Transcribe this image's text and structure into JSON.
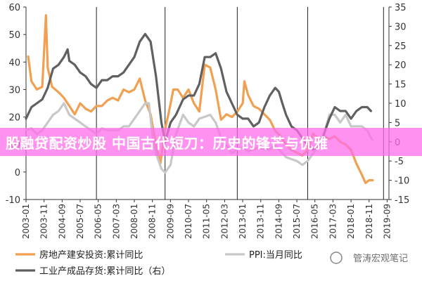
{
  "banner": {
    "text": "股融贷配资炒股 中国古代短刀：历史的锋芒与优雅"
  },
  "watermark": {
    "text": "管涛宏观笔记"
  },
  "colors": {
    "orange": "#F0A050",
    "gray": "#C8C8C8",
    "dark": "#606060",
    "banner": "#FF6EEB"
  },
  "chart_data": {
    "type": "line",
    "title": "",
    "y_left": {
      "min": -10,
      "max": 60,
      "ticks": [
        "-10",
        "0",
        "10",
        "20",
        "30",
        "40",
        "50",
        "60"
      ]
    },
    "y_right": {
      "min": -15,
      "max": 35,
      "ticks": [
        "-15",
        "-10",
        "-5",
        "0",
        "5",
        "10",
        "15",
        "20",
        "25",
        "30",
        "35"
      ]
    },
    "x_min": 2003.0,
    "x_max": 2019.75,
    "x_ticks": [
      {
        "x": 2003.0,
        "label": "2003-01"
      },
      {
        "x": 2003.833,
        "label": "2003-11"
      },
      {
        "x": 2004.667,
        "label": "2004-09"
      },
      {
        "x": 2005.5,
        "label": "2005-07"
      },
      {
        "x": 2006.333,
        "label": "2006-05"
      },
      {
        "x": 2007.167,
        "label": "2007-03"
      },
      {
        "x": 2008.0,
        "label": "2008-01"
      },
      {
        "x": 2008.833,
        "label": "2008-11"
      },
      {
        "x": 2009.667,
        "label": "2009-09"
      },
      {
        "x": 2010.5,
        "label": "2010-07"
      },
      {
        "x": 2011.333,
        "label": "2011-05"
      },
      {
        "x": 2012.167,
        "label": "2012-03"
      },
      {
        "x": 2013.0,
        "label": "2013-01"
      },
      {
        "x": 2013.833,
        "label": "2013-11"
      },
      {
        "x": 2014.667,
        "label": "2014-09"
      },
      {
        "x": 2015.5,
        "label": "2015-07"
      },
      {
        "x": 2016.333,
        "label": "2016-05"
      },
      {
        "x": 2017.167,
        "label": "2017-03"
      },
      {
        "x": 2018.0,
        "label": "2018-01"
      },
      {
        "x": 2018.833,
        "label": "2018-11"
      },
      {
        "x": 2019.667,
        "label": "2019-09"
      }
    ],
    "vlines": [
      2006.25,
      2009.417,
      2012.75,
      2016.0,
      2019.5
    ],
    "series": [
      {
        "name": "房地产建安投资:累计同比",
        "axis": "left",
        "color": "#F0A050",
        "points": [
          [
            2003.1,
            42
          ],
          [
            2003.25,
            33
          ],
          [
            2003.5,
            30
          ],
          [
            2003.75,
            31
          ],
          [
            2003.92,
            57
          ],
          [
            2004.0,
            38
          ],
          [
            2004.2,
            31
          ],
          [
            2004.5,
            29
          ],
          [
            2004.75,
            27
          ],
          [
            2005.0,
            24
          ],
          [
            2005.25,
            21
          ],
          [
            2005.5,
            25
          ],
          [
            2005.75,
            23
          ],
          [
            2006.0,
            22
          ],
          [
            2006.25,
            24
          ],
          [
            2006.5,
            24
          ],
          [
            2006.75,
            26
          ],
          [
            2007.0,
            27
          ],
          [
            2007.25,
            26
          ],
          [
            2007.5,
            30
          ],
          [
            2007.75,
            29
          ],
          [
            2008.0,
            30
          ],
          [
            2008.25,
            34
          ],
          [
            2008.5,
            26
          ],
          [
            2008.75,
            21
          ],
          [
            2009.0,
            10
          ],
          [
            2009.2,
            3
          ],
          [
            2009.4,
            15
          ],
          [
            2009.6,
            22
          ],
          [
            2009.8,
            30
          ],
          [
            2010.0,
            30
          ],
          [
            2010.25,
            27
          ],
          [
            2010.5,
            30
          ],
          [
            2010.75,
            25
          ],
          [
            2011.0,
            22
          ],
          [
            2011.25,
            39
          ],
          [
            2011.5,
            38
          ],
          [
            2011.75,
            30
          ],
          [
            2012.0,
            19
          ],
          [
            2012.25,
            21
          ],
          [
            2012.5,
            20
          ],
          [
            2012.75,
            22
          ],
          [
            2013.0,
            25
          ],
          [
            2013.08,
            33
          ],
          [
            2013.25,
            28
          ],
          [
            2013.5,
            24
          ],
          [
            2013.75,
            23
          ],
          [
            2014.0,
            21
          ],
          [
            2014.25,
            19
          ],
          [
            2014.5,
            15
          ],
          [
            2014.75,
            13
          ],
          [
            2015.0,
            10
          ],
          [
            2015.25,
            8
          ],
          [
            2015.5,
            7
          ],
          [
            2015.75,
            6
          ],
          [
            2016.0,
            8
          ],
          [
            2016.25,
            14
          ],
          [
            2016.5,
            12
          ],
          [
            2016.75,
            13
          ],
          [
            2017.0,
            12
          ],
          [
            2017.25,
            13
          ],
          [
            2017.5,
            11
          ],
          [
            2017.75,
            10
          ],
          [
            2018.0,
            8
          ],
          [
            2018.25,
            3
          ],
          [
            2018.5,
            -1
          ],
          [
            2018.67,
            -4
          ],
          [
            2018.83,
            -3
          ],
          [
            2019.0,
            -3
          ]
        ]
      },
      {
        "name": "PPI:当月同比",
        "axis": "right",
        "color": "#C8C8C8",
        "points": [
          [
            2003.0,
            3
          ],
          [
            2003.25,
            3.5
          ],
          [
            2003.5,
            2
          ],
          [
            2003.75,
            3
          ],
          [
            2004.0,
            5
          ],
          [
            2004.25,
            7
          ],
          [
            2004.5,
            8
          ],
          [
            2004.75,
            10
          ],
          [
            2005.0,
            7
          ],
          [
            2005.25,
            6
          ],
          [
            2005.5,
            5
          ],
          [
            2005.75,
            4
          ],
          [
            2006.0,
            3
          ],
          [
            2006.25,
            2
          ],
          [
            2006.5,
            3.5
          ],
          [
            2006.75,
            3
          ],
          [
            2007.0,
            3
          ],
          [
            2007.25,
            3
          ],
          [
            2007.5,
            4
          ],
          [
            2007.75,
            4
          ],
          [
            2008.0,
            6
          ],
          [
            2008.25,
            8
          ],
          [
            2008.5,
            10
          ],
          [
            2008.67,
            10
          ],
          [
            2008.83,
            2
          ],
          [
            2009.0,
            -3
          ],
          [
            2009.25,
            -7
          ],
          [
            2009.42,
            -8
          ],
          [
            2009.67,
            -6
          ],
          [
            2009.92,
            2
          ],
          [
            2010.25,
            7
          ],
          [
            2010.5,
            5
          ],
          [
            2010.75,
            4
          ],
          [
            2011.0,
            6
          ],
          [
            2011.25,
            6.5
          ],
          [
            2011.5,
            7
          ],
          [
            2011.75,
            5
          ],
          [
            2012.0,
            1
          ],
          [
            2012.25,
            -1
          ],
          [
            2012.5,
            -3
          ],
          [
            2012.75,
            -2
          ],
          [
            2013.0,
            -1.5
          ],
          [
            2013.25,
            -2.5
          ],
          [
            2013.5,
            -2
          ],
          [
            2013.75,
            -1.5
          ],
          [
            2014.0,
            -2
          ],
          [
            2014.25,
            -2
          ],
          [
            2014.5,
            -1
          ],
          [
            2014.75,
            -2.5
          ],
          [
            2015.0,
            -4
          ],
          [
            2015.25,
            -4.5
          ],
          [
            2015.5,
            -5
          ],
          [
            2015.75,
            -6
          ],
          [
            2016.0,
            -5
          ],
          [
            2016.25,
            -3
          ],
          [
            2016.5,
            -1
          ],
          [
            2016.75,
            2
          ],
          [
            2017.0,
            7
          ],
          [
            2017.25,
            7
          ],
          [
            2017.5,
            5
          ],
          [
            2017.75,
            7
          ],
          [
            2018.0,
            4
          ],
          [
            2018.25,
            4
          ],
          [
            2018.5,
            4
          ],
          [
            2018.75,
            3
          ],
          [
            2018.92,
            1
          ],
          [
            2019.0,
            0.5
          ]
        ]
      },
      {
        "name": "工业产成品存货:累计同比（右）",
        "axis": "right",
        "color": "#606060",
        "points": [
          [
            2003.0,
            6
          ],
          [
            2003.25,
            9
          ],
          [
            2003.5,
            10
          ],
          [
            2003.75,
            11
          ],
          [
            2004.0,
            14
          ],
          [
            2004.25,
            19
          ],
          [
            2004.5,
            20
          ],
          [
            2004.75,
            22
          ],
          [
            2004.92,
            24
          ],
          [
            2005.0,
            21
          ],
          [
            2005.25,
            20
          ],
          [
            2005.5,
            18
          ],
          [
            2005.75,
            17
          ],
          [
            2006.0,
            15
          ],
          [
            2006.25,
            14
          ],
          [
            2006.5,
            16
          ],
          [
            2006.75,
            16
          ],
          [
            2007.0,
            17
          ],
          [
            2007.25,
            17
          ],
          [
            2007.5,
            18
          ],
          [
            2007.75,
            20
          ],
          [
            2008.0,
            22
          ],
          [
            2008.25,
            26
          ],
          [
            2008.5,
            28
          ],
          [
            2008.75,
            26
          ],
          [
            2009.0,
            17
          ],
          [
            2009.25,
            5
          ],
          [
            2009.42,
            0
          ],
          [
            2009.67,
            5
          ],
          [
            2009.92,
            7
          ],
          [
            2010.25,
            11
          ],
          [
            2010.5,
            12
          ],
          [
            2010.75,
            12
          ],
          [
            2011.0,
            15
          ],
          [
            2011.25,
            22
          ],
          [
            2011.5,
            22
          ],
          [
            2011.75,
            23
          ],
          [
            2012.0,
            19
          ],
          [
            2012.25,
            13
          ],
          [
            2012.5,
            10
          ],
          [
            2012.75,
            7
          ],
          [
            2013.0,
            6
          ],
          [
            2013.25,
            6
          ],
          [
            2013.5,
            4
          ],
          [
            2013.75,
            5
          ],
          [
            2014.0,
            9
          ],
          [
            2014.25,
            12
          ],
          [
            2014.5,
            14
          ],
          [
            2014.67,
            13
          ],
          [
            2014.83,
            10
          ],
          [
            2015.0,
            7
          ],
          [
            2015.25,
            4
          ],
          [
            2015.5,
            3
          ],
          [
            2015.75,
            1
          ],
          [
            2016.0,
            -1
          ],
          [
            2016.25,
            -2
          ],
          [
            2016.5,
            -1
          ],
          [
            2016.75,
            2
          ],
          [
            2017.0,
            6
          ],
          [
            2017.25,
            9
          ],
          [
            2017.5,
            8
          ],
          [
            2017.75,
            8
          ],
          [
            2018.0,
            6
          ],
          [
            2018.25,
            8
          ],
          [
            2018.5,
            9
          ],
          [
            2018.75,
            9
          ],
          [
            2018.92,
            8
          ]
        ]
      }
    ],
    "legend": {
      "position": "bottom",
      "items": [
        {
          "label": "房地产建安投资:累计同比",
          "color": "#F0A050"
        },
        {
          "label": "PPI:当月同比",
          "color": "#C8C8C8"
        },
        {
          "label": "工业产成品存货:累计同比（右）",
          "color": "#606060"
        }
      ]
    }
  }
}
